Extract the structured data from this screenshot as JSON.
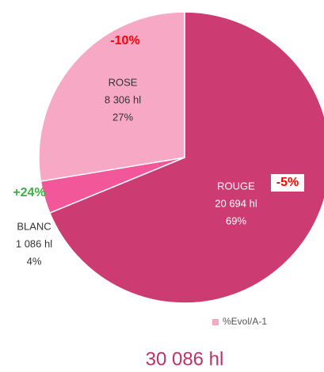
{
  "chart_data": {
    "type": "pie",
    "categories": [
      "ROUGE",
      "BLANC",
      "ROSE"
    ],
    "values": [
      20694,
      1086,
      8306
    ],
    "value_labels": [
      "20 694 hl",
      "1 086 hl",
      "8 306 hl"
    ],
    "percents": [
      69,
      4,
      27
    ],
    "percent_labels": [
      "69%",
      "4%",
      "27%"
    ],
    "colors": [
      "#cc3b72",
      "#f2579a",
      "#f7a8c4"
    ],
    "evolutions": [
      -5,
      24,
      -10
    ],
    "evolution_labels": [
      "-5%",
      "+24%",
      "-10%"
    ],
    "legend": "%Evol/A-1",
    "legend_color": "#f7a8c4",
    "total": 30086,
    "total_label": "30 086 hl"
  }
}
